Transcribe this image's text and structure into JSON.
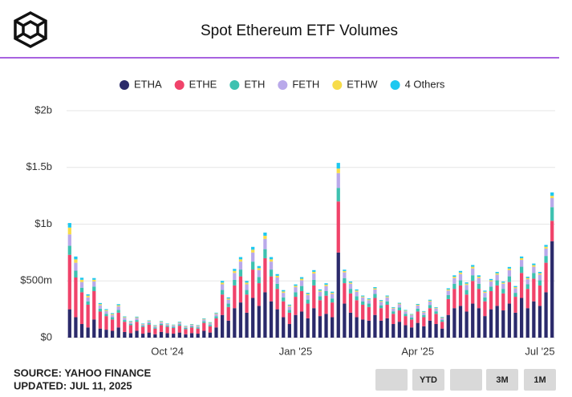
{
  "chart_data": {
    "type": "stacked_bar",
    "title": "Spot Ethereum ETF Volumes",
    "categories": [
      null,
      null,
      null,
      null,
      null,
      null,
      null,
      null,
      null,
      null,
      null,
      null,
      null,
      null,
      null,
      null,
      "Oct '24",
      null,
      null,
      null,
      null,
      null,
      null,
      null,
      null,
      null,
      null,
      null,
      null,
      null,
      null,
      null,
      null,
      null,
      null,
      null,
      null,
      "Jan '25",
      null,
      null,
      null,
      null,
      null,
      null,
      null,
      null,
      null,
      null,
      null,
      null,
      null,
      null,
      null,
      null,
      null,
      null,
      null,
      "Apr '25",
      null,
      null,
      null,
      null,
      null,
      null,
      null,
      null,
      null,
      null,
      null,
      null,
      null,
      null,
      null,
      null,
      null,
      null,
      null,
      "Jul '25",
      null,
      null
    ],
    "series": [
      {
        "name": "ETHA",
        "color": "#2b2a6b",
        "values": [
          250,
          180,
          120,
          90,
          160,
          80,
          70,
          60,
          90,
          50,
          40,
          60,
          35,
          45,
          30,
          50,
          40,
          35,
          45,
          30,
          40,
          35,
          60,
          45,
          90,
          200,
          150,
          260,
          310,
          220,
          350,
          280,
          400,
          320,
          250,
          180,
          120,
          200,
          230,
          170,
          260,
          190,
          210,
          180,
          750,
          300,
          220,
          180,
          160,
          150,
          200,
          150,
          170,
          120,
          140,
          110,
          90,
          130,
          100,
          150,
          120,
          80,
          200,
          260,
          280,
          230,
          300,
          260,
          190,
          250,
          280,
          240,
          300,
          220,
          350,
          260,
          320,
          280,
          400,
          850
        ]
      },
      {
        "name": "ETHE",
        "color": "#f0436a",
        "values": [
          480,
          350,
          280,
          200,
          250,
          150,
          120,
          100,
          130,
          90,
          70,
          80,
          60,
          70,
          50,
          60,
          55,
          50,
          60,
          45,
          50,
          45,
          70,
          55,
          80,
          180,
          120,
          200,
          230,
          160,
          250,
          200,
          300,
          220,
          180,
          140,
          100,
          160,
          180,
          130,
          200,
          140,
          160,
          130,
          450,
          180,
          170,
          150,
          130,
          120,
          150,
          110,
          120,
          90,
          100,
          80,
          70,
          100,
          80,
          110,
          90,
          60,
          140,
          170,
          180,
          150,
          200,
          170,
          130,
          160,
          180,
          150,
          190,
          140,
          220,
          170,
          200,
          180,
          260,
          180
        ]
      },
      {
        "name": "ETH",
        "color": "#3ec1b0",
        "values": [
          80,
          60,
          40,
          30,
          40,
          25,
          20,
          20,
          25,
          15,
          12,
          15,
          10,
          12,
          10,
          12,
          10,
          10,
          12,
          10,
          10,
          10,
          14,
          12,
          18,
          40,
          30,
          50,
          60,
          40,
          70,
          55,
          80,
          60,
          45,
          35,
          25,
          40,
          45,
          35,
          50,
          35,
          40,
          35,
          120,
          45,
          40,
          35,
          30,
          30,
          35,
          25,
          30,
          22,
          25,
          20,
          18,
          25,
          20,
          28,
          22,
          15,
          35,
          45,
          45,
          40,
          50,
          45,
          35,
          40,
          45,
          40,
          50,
          35,
          55,
          40,
          50,
          45,
          60,
          120
        ]
      },
      {
        "name": "FETH",
        "color": "#b9a9ea",
        "values": [
          100,
          70,
          50,
          35,
          45,
          30,
          25,
          20,
          30,
          20,
          15,
          18,
          12,
          15,
          12,
          14,
          12,
          12,
          14,
          10,
          12,
          12,
          16,
          14,
          20,
          50,
          35,
          60,
          70,
          50,
          80,
          60,
          90,
          70,
          55,
          40,
          30,
          45,
          50,
          40,
          55,
          40,
          45,
          40,
          130,
          50,
          45,
          40,
          35,
          30,
          40,
          30,
          35,
          25,
          28,
          22,
          20,
          28,
          22,
          30,
          25,
          18,
          40,
          50,
          55,
          45,
          60,
          50,
          40,
          45,
          50,
          45,
          55,
          40,
          60,
          45,
          55,
          50,
          65,
          80
        ]
      },
      {
        "name": "ETHW",
        "color": "#f7dc4a",
        "values": [
          60,
          30,
          20,
          15,
          15,
          10,
          8,
          8,
          10,
          6,
          5,
          6,
          4,
          5,
          4,
          5,
          4,
          4,
          5,
          4,
          4,
          4,
          5,
          5,
          6,
          15,
          10,
          18,
          20,
          15,
          25,
          18,
          28,
          20,
          15,
          12,
          8,
          12,
          14,
          10,
          15,
          10,
          12,
          10,
          40,
          12,
          10,
          10,
          8,
          8,
          10,
          8,
          8,
          6,
          7,
          6,
          5,
          7,
          6,
          8,
          6,
          5,
          10,
          12,
          14,
          11,
          15,
          12,
          10,
          11,
          12,
          10,
          14,
          10,
          15,
          11,
          14,
          12,
          16,
          20
        ]
      },
      {
        "name": "4 Others",
        "color": "#1ec8f0",
        "values": [
          40,
          25,
          18,
          12,
          15,
          10,
          8,
          8,
          10,
          6,
          5,
          6,
          4,
          5,
          4,
          5,
          4,
          4,
          5,
          4,
          4,
          4,
          5,
          5,
          6,
          15,
          10,
          18,
          20,
          15,
          25,
          18,
          28,
          20,
          15,
          12,
          8,
          12,
          14,
          10,
          15,
          10,
          12,
          10,
          50,
          12,
          10,
          10,
          8,
          8,
          10,
          8,
          8,
          6,
          7,
          6,
          5,
          7,
          6,
          8,
          6,
          5,
          10,
          12,
          14,
          11,
          15,
          12,
          10,
          11,
          12,
          10,
          14,
          10,
          15,
          11,
          14,
          12,
          16,
          30
        ]
      }
    ],
    "ylim": [
      0,
      2000
    ],
    "yticks": [
      {
        "value": 0,
        "label": "$0"
      },
      {
        "value": 500,
        "label": "$500m"
      },
      {
        "value": 1000,
        "label": "$1b"
      },
      {
        "value": 1500,
        "label": "$1.5b"
      },
      {
        "value": 2000,
        "label": "$2b"
      }
    ],
    "grid": true,
    "legend": "top"
  },
  "footer": {
    "source": "SOURCE: YAHOO FINANCE",
    "updated": "UPDATED: JUL 11, 2025",
    "buttons": [
      "YTD",
      "3M",
      "1M"
    ]
  }
}
